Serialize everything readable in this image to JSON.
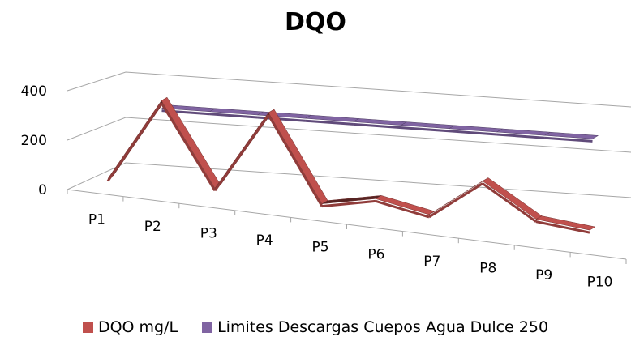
{
  "chart_data": {
    "type": "line",
    "title": "DQO",
    "categories": [
      "P1",
      "P2",
      "P3",
      "P4",
      "P5",
      "P6",
      "P7",
      "P8",
      "P9",
      "P10"
    ],
    "yticks": [
      "400",
      "200",
      "0"
    ],
    "ylim": [
      0,
      400
    ],
    "series": [
      {
        "name": "DQO mg/L",
        "color": "#c0504d",
        "values": [
          30,
          370,
          40,
          370,
          25,
          70,
          30,
          190,
          60,
          40
        ]
      },
      {
        "name": "Limites Descargas Cuepos Agua Dulce 250",
        "color": "#8064a2",
        "values": [
          250,
          250,
          250,
          250,
          250,
          250,
          250,
          250,
          250,
          250
        ]
      }
    ],
    "legend_position": "bottom",
    "grid": true,
    "style": "3d-line"
  }
}
